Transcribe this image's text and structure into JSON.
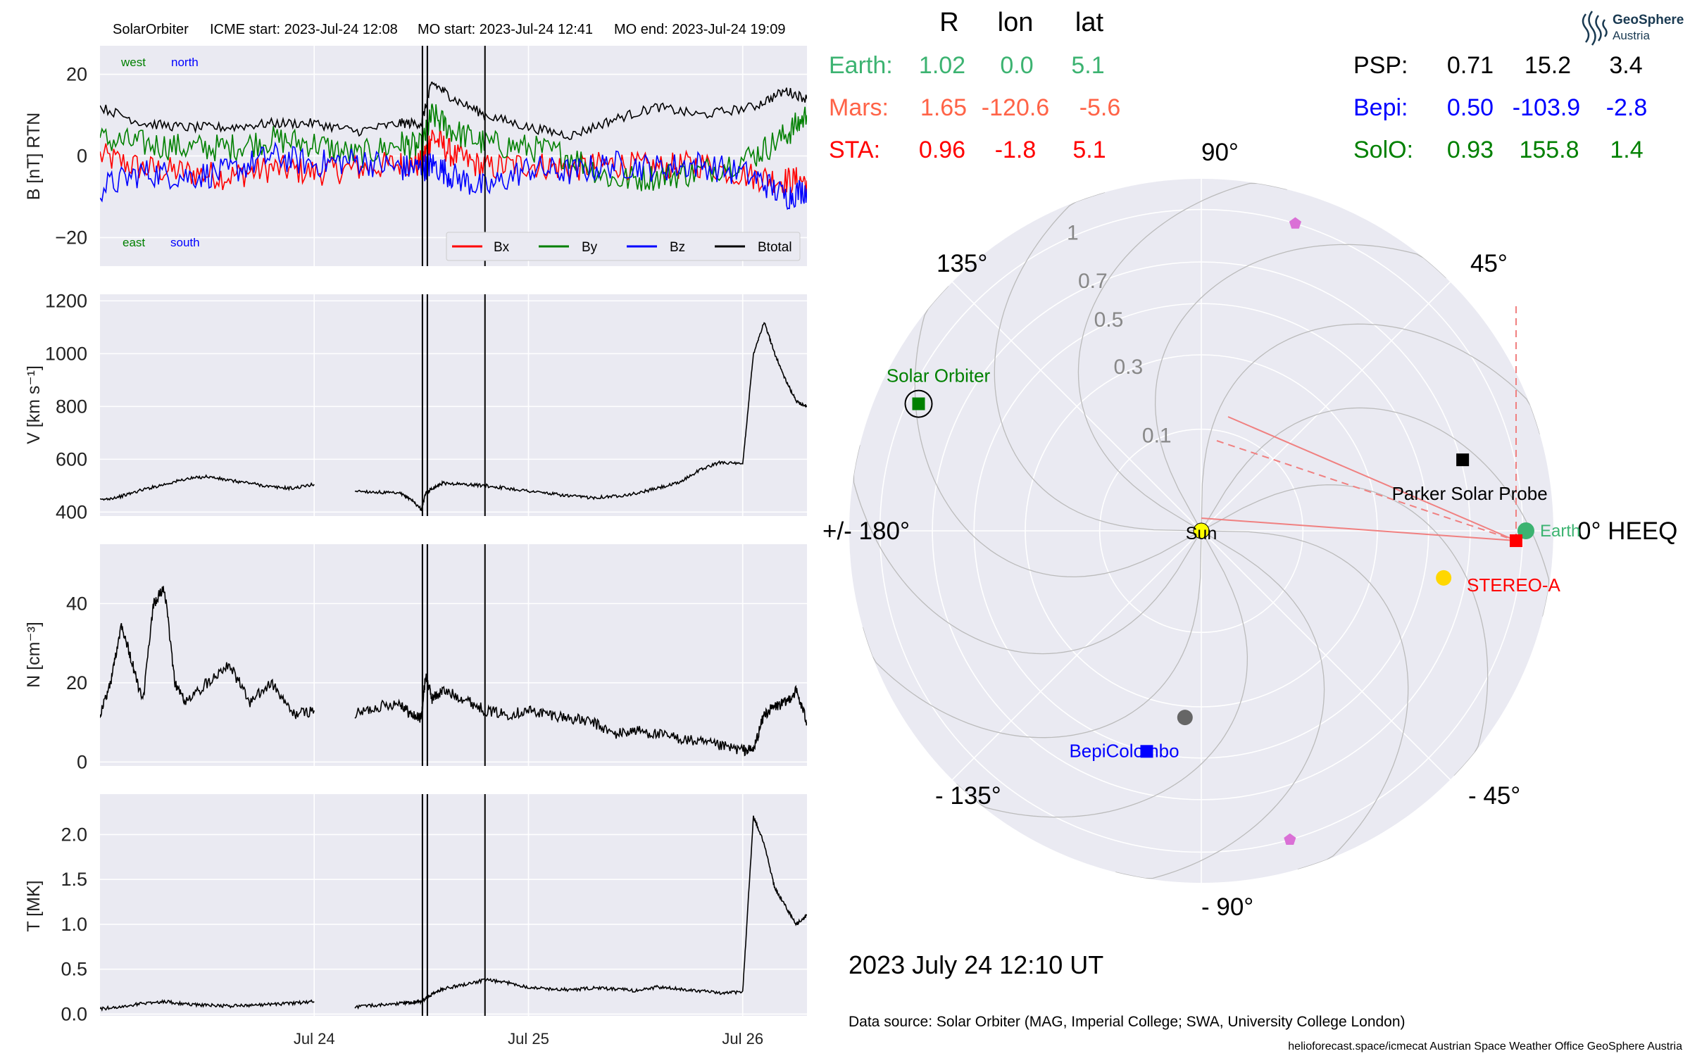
{
  "header": {
    "spacecraft": "SolarOrbiter",
    "icme_start": "ICME start: 2023-Jul-24 12:08",
    "mo_start": "MO start: 2023-Jul-24 12:41",
    "mo_end": "MO end: 2023-Jul-24 19:09"
  },
  "logo": {
    "line1": "GeoSphere",
    "line2": "Austria"
  },
  "footer": {
    "timestamp": "2023 July 24  12:10 UT",
    "data_source": "Data source: Solar Orbiter (MAG, Imperial College; SWA, University College London)",
    "credits": "helioforecast.space/icmecat   Austrian Space Weather Office   GeoSphere Austria"
  },
  "position_table": {
    "headers": [
      "R",
      "lon",
      "lat"
    ],
    "rows_left": [
      {
        "name": "Earth:",
        "values": [
          "1.02",
          "0.0",
          "5.1"
        ],
        "color": "#3cb371"
      },
      {
        "name": "Mars:",
        "values": [
          "1.65",
          "-120.6",
          "-5.6"
        ],
        "color": "#ff6347"
      },
      {
        "name": "STA:",
        "values": [
          "0.96",
          "-1.8",
          "5.1"
        ],
        "color": "#ff0000"
      }
    ],
    "rows_right": [
      {
        "name": "PSP:",
        "values": [
          "0.71",
          "15.2",
          "3.4"
        ],
        "color": "#000000"
      },
      {
        "name": "Bepi:",
        "values": [
          "0.50",
          "-103.9",
          "-2.8"
        ],
        "color": "#0000ff"
      },
      {
        "name": "SolO:",
        "values": [
          "0.93",
          "155.8",
          "1.4"
        ],
        "color": "#008000"
      }
    ]
  },
  "chart_data": [
    {
      "type": "line",
      "title": "B [nT] RTN",
      "ylabel": "B [nT] RTN",
      "ylim": [
        -27,
        27
      ],
      "yticks": [
        -20,
        0,
        20
      ],
      "ytick_labels": [
        "−20",
        "0",
        "20"
      ],
      "xlim": [
        0,
        3.3
      ],
      "xticks": [
        1,
        2,
        3
      ],
      "xtick_labels": [
        "Jul 24",
        "Jul 25",
        "Jul 26"
      ],
      "event_lines": [
        1.505,
        1.528,
        1.797
      ],
      "annotations": [
        {
          "text": "west",
          "color": "#008000",
          "pos": "top-left"
        },
        {
          "text": "north",
          "color": "#0000ff",
          "pos": "top-left"
        },
        {
          "text": "east",
          "color": "#008000",
          "pos": "bottom-left"
        },
        {
          "text": "south",
          "color": "#0000ff",
          "pos": "bottom-left"
        }
      ],
      "legend": "bottom-right",
      "series": [
        {
          "name": "Bx",
          "color": "#ff0000",
          "x": [
            0,
            0.2,
            0.4,
            0.6,
            0.8,
            1.0,
            1.2,
            1.4,
            1.5,
            1.55,
            1.65,
            1.8,
            2.0,
            2.2,
            2.4,
            2.6,
            2.8,
            3.05,
            3.2,
            3.3
          ],
          "values": [
            0,
            -3,
            -4,
            -5,
            -3,
            -4,
            -3,
            -2,
            -2,
            5,
            0,
            -3,
            -2,
            -3,
            -2,
            -3,
            -2,
            -5,
            -6,
            -6
          ]
        },
        {
          "name": "By",
          "color": "#008000",
          "x": [
            0,
            0.2,
            0.4,
            0.6,
            0.8,
            1.0,
            1.2,
            1.4,
            1.5,
            1.55,
            1.65,
            1.8,
            2.0,
            2.2,
            2.4,
            2.6,
            2.8,
            3.05,
            3.2,
            3.3
          ],
          "values": [
            4,
            3,
            2,
            2,
            4,
            3,
            0,
            3,
            2,
            10,
            6,
            3,
            2,
            0,
            -6,
            -5,
            -4,
            0,
            5,
            10
          ]
        },
        {
          "name": "Bz",
          "color": "#0000ff",
          "x": [
            0,
            0.2,
            0.4,
            0.6,
            0.8,
            1.0,
            1.2,
            1.4,
            1.5,
            1.55,
            1.65,
            1.8,
            2.0,
            2.2,
            2.4,
            2.6,
            2.8,
            3.05,
            3.2,
            3.3
          ],
          "values": [
            -8,
            -4,
            -5,
            -4,
            0,
            -2,
            -1,
            -3,
            -3,
            -2,
            -5,
            -8,
            -3,
            -4,
            -2,
            -3,
            -2,
            -5,
            -10,
            -8
          ]
        },
        {
          "name": "Btotal",
          "color": "#000000",
          "x": [
            0,
            0.2,
            0.4,
            0.6,
            0.8,
            1.0,
            1.2,
            1.4,
            1.5,
            1.55,
            1.65,
            1.8,
            2.0,
            2.2,
            2.4,
            2.6,
            2.8,
            3.05,
            3.2,
            3.3
          ],
          "values": [
            12,
            8,
            7,
            7,
            8,
            8,
            6,
            8,
            8,
            18,
            14,
            10,
            7,
            5,
            9,
            12,
            10,
            12,
            16,
            14
          ]
        }
      ]
    },
    {
      "type": "line",
      "ylabel": "V [km s⁻¹]",
      "ylim": [
        385,
        1225
      ],
      "yticks": [
        400,
        600,
        800,
        1000,
        1200
      ],
      "xlim": [
        0,
        3.3
      ],
      "xticks": [
        1,
        2,
        3
      ],
      "xtick_labels": [
        "Jul 24",
        "Jul 25",
        "Jul 26"
      ],
      "event_lines": [
        1.505,
        1.528,
        1.797
      ],
      "legend": "none",
      "series": [
        {
          "name": "",
          "color": "#000000",
          "segments": [
            {
              "x": [
                0,
                0.1,
                0.2,
                0.3,
                0.4,
                0.5,
                0.6,
                0.7,
                0.8,
                0.9,
                1.0
              ],
              "values": [
                445,
                460,
                485,
                505,
                525,
                535,
                520,
                510,
                495,
                490,
                505
              ]
            },
            {
              "x": [
                1.19,
                1.3,
                1.4,
                1.45,
                1.5,
                1.52,
                1.55,
                1.6,
                1.7,
                1.8,
                1.9,
                2.0,
                2.1,
                2.2,
                2.3,
                2.4,
                2.5,
                2.6,
                2.7,
                2.8,
                2.9,
                3.0,
                3.05,
                3.1,
                3.15,
                3.2,
                3.25,
                3.3
              ],
              "values": [
                480,
                475,
                470,
                450,
                410,
                470,
                490,
                510,
                505,
                500,
                490,
                480,
                470,
                460,
                455,
                460,
                470,
                490,
                510,
                560,
                590,
                580,
                1000,
                1120,
                1000,
                900,
                820,
                800
              ]
            }
          ]
        }
      ]
    },
    {
      "type": "line",
      "ylabel": "N [cm⁻³]",
      "ylim": [
        -1,
        55
      ],
      "yticks": [
        0,
        20,
        40
      ],
      "xlim": [
        0,
        3.3
      ],
      "xticks": [
        1,
        2,
        3
      ],
      "xtick_labels": [
        "Jul 24",
        "Jul 25",
        "Jul 26"
      ],
      "event_lines": [
        1.505,
        1.528,
        1.797
      ],
      "legend": "none",
      "series": [
        {
          "name": "",
          "color": "#000000",
          "segments": [
            {
              "x": [
                0,
                0.05,
                0.1,
                0.15,
                0.2,
                0.25,
                0.3,
                0.35,
                0.4,
                0.5,
                0.6,
                0.7,
                0.8,
                0.9,
                1.0
              ],
              "values": [
                12,
                20,
                35,
                25,
                15,
                40,
                44,
                20,
                15,
                20,
                25,
                15,
                20,
                12,
                13
              ]
            },
            {
              "x": [
                1.19,
                1.3,
                1.4,
                1.45,
                1.5,
                1.52,
                1.55,
                1.6,
                1.7,
                1.8,
                1.9,
                2.0,
                2.1,
                2.2,
                2.3,
                2.4,
                2.5,
                2.6,
                2.7,
                2.8,
                2.9,
                3.0,
                3.05,
                3.1,
                3.15,
                3.2,
                3.25,
                3.3
              ],
              "values": [
                12,
                14,
                15,
                12,
                11,
                22,
                16,
                18,
                16,
                13,
                12,
                13,
                12,
                11,
                10,
                7,
                8,
                7,
                6,
                5,
                4,
                3,
                3,
                12,
                14,
                15,
                18,
                10
              ]
            }
          ]
        }
      ]
    },
    {
      "type": "line",
      "ylabel": "T [MK]",
      "ylim": [
        -0.02,
        2.45
      ],
      "yticks": [
        0.0,
        0.5,
        1.0,
        1.5,
        2.0
      ],
      "ytick_labels": [
        "0.0",
        "0.5",
        "1.0",
        "1.5",
        "2.0"
      ],
      "xlim": [
        0,
        3.3
      ],
      "xticks": [
        1,
        2,
        3
      ],
      "xtick_labels": [
        "Jul 24",
        "Jul 25",
        "Jul 26"
      ],
      "event_lines": [
        1.505,
        1.528,
        1.797
      ],
      "legend": "none",
      "series": [
        {
          "name": "",
          "color": "#000000",
          "segments": [
            {
              "x": [
                0,
                0.1,
                0.2,
                0.3,
                0.4,
                0.5,
                0.6,
                0.7,
                0.8,
                0.9,
                1.0
              ],
              "values": [
                0.06,
                0.08,
                0.12,
                0.14,
                0.11,
                0.1,
                0.09,
                0.1,
                0.11,
                0.12,
                0.14
              ]
            },
            {
              "x": [
                1.19,
                1.3,
                1.4,
                1.45,
                1.5,
                1.55,
                1.6,
                1.7,
                1.8,
                1.9,
                2.0,
                2.1,
                2.2,
                2.3,
                2.4,
                2.5,
                2.6,
                2.7,
                2.8,
                2.9,
                3.0,
                3.05,
                3.1,
                3.15,
                3.2,
                3.25,
                3.3
              ],
              "values": [
                0.08,
                0.1,
                0.12,
                0.13,
                0.14,
                0.22,
                0.28,
                0.33,
                0.38,
                0.35,
                0.3,
                0.28,
                0.27,
                0.29,
                0.28,
                0.26,
                0.3,
                0.28,
                0.26,
                0.23,
                0.25,
                2.2,
                1.9,
                1.4,
                1.2,
                1.0,
                1.1
              ]
            }
          ]
        }
      ]
    },
    {
      "type": "scatter",
      "subtype": "polar",
      "radial_ticks": [
        0.1,
        0.3,
        0.5,
        0.7,
        1.0
      ],
      "angle_labels": [
        {
          "deg": 0,
          "text": "0° HEEQ"
        },
        {
          "deg": 45,
          "text": "45°"
        },
        {
          "deg": 90,
          "text": "90°"
        },
        {
          "deg": 135,
          "text": "135°"
        },
        {
          "deg": 180,
          "text": "+/- 180°"
        },
        {
          "deg": -135,
          "text": "- 135°"
        },
        {
          "deg": -90,
          "text": "- 90°"
        },
        {
          "deg": -45,
          "text": "- 45°"
        }
      ],
      "bodies": [
        {
          "name": "Sun",
          "r": 0.0,
          "lon": 0,
          "marker": "circle",
          "color": "#ffff00"
        },
        {
          "name": "Earth",
          "r": 1.02,
          "lon": 0.0,
          "marker": "circle",
          "color": "#3cb371"
        },
        {
          "name": "STEREO-A",
          "r": 0.96,
          "lon": -1.8,
          "marker": "square",
          "color": "#ff0000"
        },
        {
          "name": "Parker Solar Probe",
          "r": 0.71,
          "lon": 15.2,
          "marker": "square",
          "color": "#000000"
        },
        {
          "name": "BepiColombo",
          "r": 0.5,
          "lon": -103.9,
          "marker": "square",
          "color": "#0000ff"
        },
        {
          "name": "Solar Orbiter",
          "r": 0.93,
          "lon": 155.8,
          "marker": "square",
          "color": "#008000"
        }
      ],
      "other_markers": [
        {
          "name": "",
          "r": 0.34,
          "lon": -95,
          "marker": "circle",
          "color": "#666666"
        },
        {
          "name": "",
          "r": 0.59,
          "lon": -11,
          "marker": "circle",
          "color": "#ffd700"
        },
        {
          "name": "",
          "r": 1.0,
          "lon": 73,
          "marker": "pentagon",
          "color": "#da70d6"
        },
        {
          "name": "",
          "r": 1.0,
          "lon": -74,
          "marker": "pentagon",
          "color": "#da70d6"
        }
      ]
    }
  ]
}
